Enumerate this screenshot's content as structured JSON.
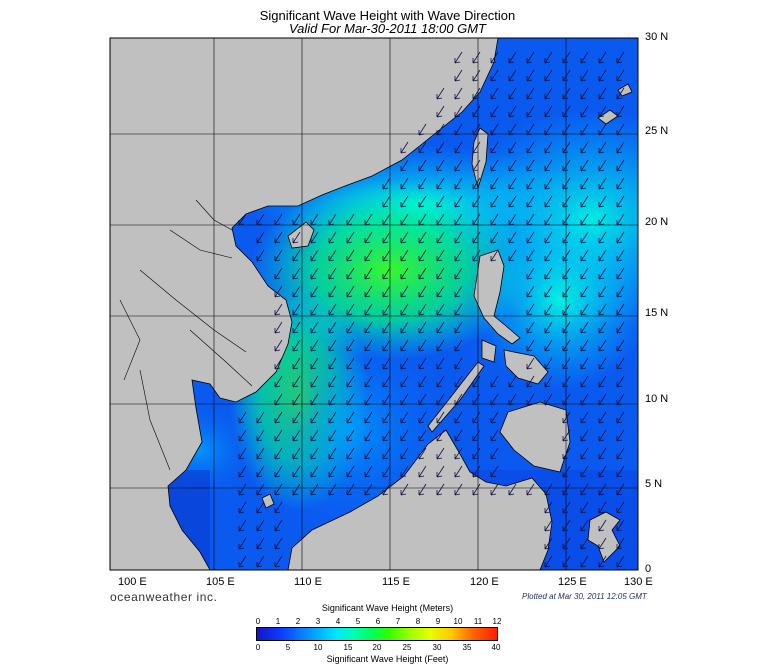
{
  "header": {
    "title": "Significant Wave Height with Wave Direction",
    "subtitle": "Valid For Mar-30-2011 18:00 GMT"
  },
  "map": {
    "x_ticks": [
      "100 E",
      "105 E",
      "110 E",
      "115 E",
      "120 E",
      "125 E",
      "130 E"
    ],
    "y_ticks": [
      "30 N",
      "25 N",
      "20 N",
      "15 N",
      "10 N",
      "5 N",
      "0"
    ],
    "land_color": "#c0c0c0",
    "sea_color": "#0a5af0",
    "arrow_direction": "southwest"
  },
  "footer": {
    "brand": "oceanweather inc.",
    "plotted": "Plotted at Mar 30, 2011 12:05 GMT"
  },
  "colorbar": {
    "title_top": "Significant Wave Height (Meters)",
    "meters": [
      "0",
      "1",
      "2",
      "3",
      "4",
      "5",
      "6",
      "7",
      "8",
      "9",
      "10",
      "11",
      "12"
    ],
    "feet": [
      "0",
      "5",
      "10",
      "15",
      "20",
      "25",
      "30",
      "35",
      "40"
    ],
    "title_bottom": "Significant Wave Height (Feet)"
  }
}
